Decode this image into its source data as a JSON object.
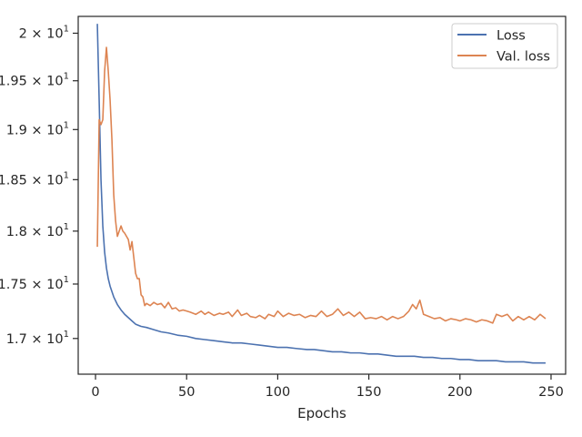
{
  "chart_data": {
    "type": "line",
    "title": "",
    "xlabel": "Epochs",
    "ylabel": "",
    "xlim": [
      -9.5,
      258
    ],
    "ylim": [
      16.68,
      20.18
    ],
    "yscale": "log",
    "grid": false,
    "legend_position": "top-right",
    "x_ticks": [
      0,
      50,
      100,
      150,
      200,
      250
    ],
    "x_tick_labels": [
      "0",
      "50",
      "100",
      "150",
      "200",
      "250"
    ],
    "y_ticks": [
      17.0,
      17.5,
      18.0,
      18.5,
      19.0,
      19.5,
      20.0
    ],
    "y_tick_labels": [
      {
        "base": "1.7 × 10",
        "exp": "1"
      },
      {
        "base": "1.75 × 10",
        "exp": "1"
      },
      {
        "base": "1.8 × 10",
        "exp": "1"
      },
      {
        "base": "1.85 × 10",
        "exp": "1"
      },
      {
        "base": "1.9 × 10",
        "exp": "1"
      },
      {
        "base": "1.95 × 10",
        "exp": "1"
      },
      {
        "base": "2 × 10",
        "exp": "1"
      }
    ],
    "series": [
      {
        "name": "Loss",
        "color": "#4c72b0",
        "points": [
          [
            1,
            20.1
          ],
          [
            2,
            19.3
          ],
          [
            3,
            18.5
          ],
          [
            4,
            18.05
          ],
          [
            5,
            17.8
          ],
          [
            6,
            17.65
          ],
          [
            7,
            17.55
          ],
          [
            8,
            17.48
          ],
          [
            9,
            17.43
          ],
          [
            10,
            17.38
          ],
          [
            12,
            17.31
          ],
          [
            14,
            17.26
          ],
          [
            16,
            17.22
          ],
          [
            18,
            17.19
          ],
          [
            20,
            17.16
          ],
          [
            22,
            17.13
          ],
          [
            25,
            17.11
          ],
          [
            28,
            17.1
          ],
          [
            32,
            17.08
          ],
          [
            36,
            17.06
          ],
          [
            40,
            17.05
          ],
          [
            45,
            17.03
          ],
          [
            50,
            17.02
          ],
          [
            55,
            17.0
          ],
          [
            60,
            16.99
          ],
          [
            65,
            16.98
          ],
          [
            70,
            16.97
          ],
          [
            75,
            16.96
          ],
          [
            80,
            16.96
          ],
          [
            85,
            16.95
          ],
          [
            90,
            16.94
          ],
          [
            95,
            16.93
          ],
          [
            100,
            16.92
          ],
          [
            105,
            16.92
          ],
          [
            110,
            16.91
          ],
          [
            116,
            16.9
          ],
          [
            120,
            16.9
          ],
          [
            125,
            16.89
          ],
          [
            130,
            16.88
          ],
          [
            135,
            16.88
          ],
          [
            140,
            16.87
          ],
          [
            145,
            16.87
          ],
          [
            150,
            16.86
          ],
          [
            155,
            16.86
          ],
          [
            160,
            16.85
          ],
          [
            165,
            16.84
          ],
          [
            170,
            16.84
          ],
          [
            175,
            16.84
          ],
          [
            180,
            16.83
          ],
          [
            185,
            16.83
          ],
          [
            190,
            16.82
          ],
          [
            195,
            16.82
          ],
          [
            200,
            16.81
          ],
          [
            205,
            16.81
          ],
          [
            210,
            16.8
          ],
          [
            215,
            16.8
          ],
          [
            220,
            16.8
          ],
          [
            225,
            16.79
          ],
          [
            230,
            16.79
          ],
          [
            235,
            16.79
          ],
          [
            240,
            16.78
          ],
          [
            245,
            16.78
          ],
          [
            247,
            16.78
          ]
        ]
      },
      {
        "name": "Val. loss",
        "color": "#dd8452",
        "points": [
          [
            1,
            17.85
          ],
          [
            2,
            19.1
          ],
          [
            3,
            19.05
          ],
          [
            4,
            19.1
          ],
          [
            5,
            19.6
          ],
          [
            6,
            19.85
          ],
          [
            7,
            19.6
          ],
          [
            8,
            19.3
          ],
          [
            9,
            18.9
          ],
          [
            10,
            18.35
          ],
          [
            11,
            18.1
          ],
          [
            12,
            17.95
          ],
          [
            13,
            18.0
          ],
          [
            14,
            18.05
          ],
          [
            15,
            18.0
          ],
          [
            16,
            17.98
          ],
          [
            17,
            17.95
          ],
          [
            18,
            17.92
          ],
          [
            19,
            17.82
          ],
          [
            20,
            17.9
          ],
          [
            21,
            17.75
          ],
          [
            22,
            17.6
          ],
          [
            23,
            17.55
          ],
          [
            24,
            17.55
          ],
          [
            25,
            17.4
          ],
          [
            26,
            17.38
          ],
          [
            27,
            17.3
          ],
          [
            28,
            17.32
          ],
          [
            30,
            17.3
          ],
          [
            32,
            17.33
          ],
          [
            34,
            17.31
          ],
          [
            36,
            17.32
          ],
          [
            38,
            17.28
          ],
          [
            40,
            17.33
          ],
          [
            42,
            17.27
          ],
          [
            44,
            17.28
          ],
          [
            46,
            17.25
          ],
          [
            48,
            17.26
          ],
          [
            50,
            17.25
          ],
          [
            52,
            17.24
          ],
          [
            55,
            17.22
          ],
          [
            58,
            17.25
          ],
          [
            60,
            17.22
          ],
          [
            62,
            17.24
          ],
          [
            65,
            17.21
          ],
          [
            68,
            17.23
          ],
          [
            70,
            17.22
          ],
          [
            73,
            17.24
          ],
          [
            75,
            17.2
          ],
          [
            78,
            17.26
          ],
          [
            80,
            17.21
          ],
          [
            83,
            17.23
          ],
          [
            85,
            17.2
          ],
          [
            88,
            17.19
          ],
          [
            90,
            17.21
          ],
          [
            93,
            17.18
          ],
          [
            95,
            17.22
          ],
          [
            98,
            17.2
          ],
          [
            100,
            17.25
          ],
          [
            103,
            17.2
          ],
          [
            106,
            17.23
          ],
          [
            109,
            17.21
          ],
          [
            112,
            17.22
          ],
          [
            115,
            17.19
          ],
          [
            118,
            17.21
          ],
          [
            121,
            17.2
          ],
          [
            124,
            17.25
          ],
          [
            127,
            17.2
          ],
          [
            130,
            17.22
          ],
          [
            133,
            17.27
          ],
          [
            136,
            17.21
          ],
          [
            139,
            17.24
          ],
          [
            142,
            17.2
          ],
          [
            145,
            17.24
          ],
          [
            148,
            17.18
          ],
          [
            151,
            17.19
          ],
          [
            154,
            17.18
          ],
          [
            157,
            17.2
          ],
          [
            160,
            17.17
          ],
          [
            163,
            17.2
          ],
          [
            166,
            17.18
          ],
          [
            169,
            17.2
          ],
          [
            172,
            17.25
          ],
          [
            174,
            17.31
          ],
          [
            176,
            17.27
          ],
          [
            178,
            17.35
          ],
          [
            180,
            17.22
          ],
          [
            183,
            17.2
          ],
          [
            186,
            17.18
          ],
          [
            189,
            17.19
          ],
          [
            192,
            17.16
          ],
          [
            195,
            17.18
          ],
          [
            198,
            17.17
          ],
          [
            200,
            17.16
          ],
          [
            203,
            17.18
          ],
          [
            206,
            17.17
          ],
          [
            209,
            17.15
          ],
          [
            212,
            17.17
          ],
          [
            215,
            17.16
          ],
          [
            218,
            17.14
          ],
          [
            220,
            17.22
          ],
          [
            223,
            17.2
          ],
          [
            226,
            17.22
          ],
          [
            229,
            17.16
          ],
          [
            232,
            17.2
          ],
          [
            235,
            17.17
          ],
          [
            238,
            17.2
          ],
          [
            241,
            17.17
          ],
          [
            244,
            17.22
          ],
          [
            247,
            17.18
          ]
        ]
      }
    ]
  }
}
